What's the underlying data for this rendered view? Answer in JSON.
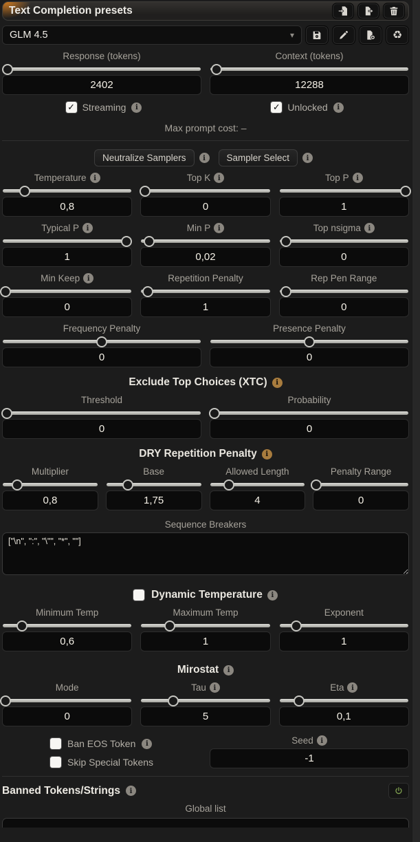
{
  "header": {
    "title": "Text Completion presets"
  },
  "preset": {
    "selected": "GLM 4.5"
  },
  "misc": {
    "streaming": "Streaming",
    "unlocked": "Unlocked",
    "max_prompt_cost": "Max prompt cost: –",
    "neutralize": "Neutralize Samplers",
    "sampler_select": "Sampler Select",
    "xtc_header": "Exclude Top Choices (XTC)",
    "dry_header": "DRY Repetition Penalty",
    "seq_breakers_label": "Sequence Breakers",
    "seq_breakers_value": "[\"\\n\", \":\", \"\\\"\", \"*\", \"\"]",
    "dyn_temp_header": "Dynamic Temperature",
    "mirostat_header": "Mirostat",
    "ban_eos": "Ban EOS Token",
    "skip_special": "Skip Special Tokens",
    "seed_label": "Seed",
    "seed_value": "-1",
    "banned_header": "Banned Tokens/Strings",
    "global_list": "Global list"
  },
  "colors": {
    "accent_orange_info": "#a87c3e",
    "power_green": "#7d9e4e"
  },
  "controls": {
    "response": {
      "label": "Response (tokens)",
      "value": "2402",
      "pct": 2.5,
      "info": null
    },
    "context": {
      "label": "Context (tokens)",
      "value": "12288",
      "pct": 3,
      "info": null
    },
    "temperature": {
      "label": "Temperature",
      "value": "0,8",
      "pct": 17,
      "info": "grey"
    },
    "top_k": {
      "label": "Top K",
      "value": "0",
      "pct": 3,
      "info": "grey"
    },
    "top_p": {
      "label": "Top P",
      "value": "1",
      "pct": 98,
      "info": "grey"
    },
    "typical_p": {
      "label": "Typical P",
      "value": "1",
      "pct": 96,
      "info": "grey"
    },
    "min_p": {
      "label": "Min P",
      "value": "0,02",
      "pct": 6,
      "info": "grey"
    },
    "top_nsigma": {
      "label": "Top nsigma",
      "value": "0",
      "pct": 5,
      "info": "grey"
    },
    "min_keep": {
      "label": "Min Keep",
      "value": "0",
      "pct": 2,
      "info": "grey"
    },
    "rep_pen": {
      "label": "Repetition Penalty",
      "value": "1",
      "pct": 5,
      "info": null
    },
    "rep_pen_range": {
      "label": "Rep Pen Range",
      "value": "0",
      "pct": 5,
      "info": null
    },
    "freq_pen": {
      "label": "Frequency Penalty",
      "value": "0",
      "pct": 50,
      "info": null
    },
    "pres_pen": {
      "label": "Presence Penalty",
      "value": "0",
      "pct": 50,
      "info": null
    },
    "xtc_threshold": {
      "label": "Threshold",
      "value": "0",
      "pct": 2,
      "info": null
    },
    "xtc_probability": {
      "label": "Probability",
      "value": "0",
      "pct": 2,
      "info": null
    },
    "dry_multiplier": {
      "label": "Multiplier",
      "value": "0,8",
      "pct": 15,
      "info": null
    },
    "dry_base": {
      "label": "Base",
      "value": "1,75",
      "pct": 23,
      "info": null
    },
    "dry_allowed_length": {
      "label": "Allowed Length",
      "value": "4",
      "pct": 20,
      "info": null
    },
    "dry_penalty_range": {
      "label": "Penalty Range",
      "value": "0",
      "pct": 3,
      "info": null
    },
    "min_temp": {
      "label": "Minimum Temp",
      "value": "0,6",
      "pct": 15,
      "info": null
    },
    "max_temp": {
      "label": "Maximum Temp",
      "value": "1",
      "pct": 22,
      "info": null
    },
    "exponent": {
      "label": "Exponent",
      "value": "1",
      "pct": 13,
      "info": null
    },
    "miro_mode": {
      "label": "Mode",
      "value": "0",
      "pct": 2,
      "info": null
    },
    "miro_tau": {
      "label": "Tau",
      "value": "5",
      "pct": 25,
      "info": "grey"
    },
    "miro_eta": {
      "label": "Eta",
      "value": "0,1",
      "pct": 15,
      "info": "grey"
    }
  }
}
